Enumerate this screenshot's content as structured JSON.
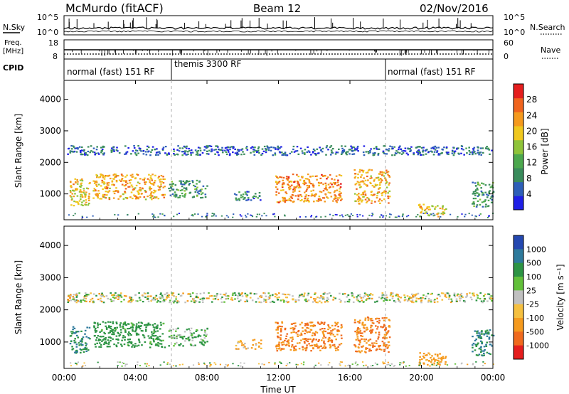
{
  "header": {
    "station": "McMurdo (fitACF)",
    "beam": "Beam 12",
    "date": "02/Nov/2016"
  },
  "aux_panel": {
    "left_labels": {
      "sky": "N.Sky",
      "freq_line1": "Freq.",
      "freq_line2": "[MHz]",
      "cpid": "CPID"
    },
    "right_labels": {
      "search": "N.Search",
      "nave": "Nave"
    },
    "sky_ticks": [
      "10^5",
      "10^0"
    ],
    "search_ticks": [
      "10^5",
      "10^0"
    ],
    "freq_ticks": [
      "18",
      "8"
    ],
    "nave_ticks": [
      "60",
      "0"
    ],
    "cpid_segments": [
      {
        "label": "normal (fast) 151 RF",
        "start_hour": 0,
        "end_hour": 6
      },
      {
        "label": "themis 3300 RF",
        "start_hour": 6,
        "end_hour": 18
      },
      {
        "label": "normal (fast) 151 RF",
        "start_hour": 18,
        "end_hour": 24
      }
    ]
  },
  "power_colorbar": {
    "label": "Power [dB]",
    "ticks": [
      "4",
      "8",
      "12",
      "16",
      "20",
      "24",
      "28"
    ],
    "colors": [
      "#1f1fe6",
      "#2e5fb8",
      "#3a8c5c",
      "#4ca84e",
      "#8fc43a",
      "#f0c81e",
      "#f59a1e",
      "#f0641e",
      "#e51e1e"
    ]
  },
  "velocity_colorbar": {
    "label": "Velocity [m s⁻¹]",
    "ticks": [
      "1000",
      "500",
      "100",
      "25",
      "-25",
      "-100",
      "-500",
      "-1000"
    ],
    "colors": [
      "#2448b0",
      "#2e7a9c",
      "#2d9444",
      "#62c03a",
      "#c0c0c0",
      "#f5c040",
      "#f59a1e",
      "#f06a1e",
      "#e51e1e"
    ]
  },
  "axes": {
    "ylabel": "Slant Range [km]",
    "xlabel": "Time UT",
    "y_ticks": [
      "1000",
      "2000",
      "3000",
      "4000"
    ],
    "x_ticks": [
      "00:00",
      "04:00",
      "08:00",
      "12:00",
      "16:00",
      "20:00",
      "00:00"
    ]
  },
  "chart_data": [
    {
      "type": "heatmap",
      "title": "",
      "xlabel": "",
      "ylabel": "Slant Range [km]",
      "xlim_hours": [
        0,
        24
      ],
      "ylim_km": [
        180,
        4600
      ],
      "value": "Power [dB]",
      "grid": false,
      "scatter_regions": [
        {
          "t_start": 0.1,
          "t_end": 24,
          "r_low": 2250,
          "r_high": 2550,
          "level": 6
        },
        {
          "t_start": 0.3,
          "t_end": 1.4,
          "r_low": 650,
          "r_high": 1500,
          "level": 20
        },
        {
          "t_start": 1.6,
          "t_end": 5.6,
          "r_low": 850,
          "r_high": 1650,
          "level": 22
        },
        {
          "t_start": 5.8,
          "t_end": 8.0,
          "r_low": 900,
          "r_high": 1450,
          "level": 10
        },
        {
          "t_start": 9.5,
          "t_end": 11.0,
          "r_low": 800,
          "r_high": 1100,
          "level": 8
        },
        {
          "t_start": 11.8,
          "t_end": 15.5,
          "r_low": 750,
          "r_high": 1650,
          "level": 24
        },
        {
          "t_start": 16.2,
          "t_end": 18.2,
          "r_low": 700,
          "r_high": 1800,
          "level": 22
        },
        {
          "t_start": 19.8,
          "t_end": 21.4,
          "r_low": 300,
          "r_high": 700,
          "level": 20
        },
        {
          "t_start": 22.8,
          "t_end": 24,
          "r_low": 600,
          "r_high": 1400,
          "level": 10
        }
      ]
    },
    {
      "type": "heatmap",
      "title": "",
      "xlabel": "Time UT",
      "ylabel": "Slant Range [km]",
      "xlim_hours": [
        0,
        24
      ],
      "ylim_km": [
        180,
        4600
      ],
      "value": "Velocity [m s⁻¹]",
      "grid": false,
      "scatter_regions": [
        {
          "t_start": 0.1,
          "t_end": 24,
          "r_low": 2250,
          "r_high": 2550,
          "velocity": 0
        },
        {
          "t_start": 0.3,
          "t_end": 1.4,
          "r_low": 650,
          "r_high": 1500,
          "velocity": 300
        },
        {
          "t_start": 1.6,
          "t_end": 5.6,
          "r_low": 850,
          "r_high": 1650,
          "velocity": 150
        },
        {
          "t_start": 5.8,
          "t_end": 8.0,
          "r_low": 900,
          "r_high": 1450,
          "velocity": 80
        },
        {
          "t_start": 9.5,
          "t_end": 11.0,
          "r_low": 800,
          "r_high": 1100,
          "velocity": -80
        },
        {
          "t_start": 11.8,
          "t_end": 15.5,
          "r_low": 750,
          "r_high": 1650,
          "velocity": -300
        },
        {
          "t_start": 16.2,
          "t_end": 18.2,
          "r_low": 700,
          "r_high": 1800,
          "velocity": -300
        },
        {
          "t_start": 19.8,
          "t_end": 21.4,
          "r_low": 300,
          "r_high": 700,
          "velocity": -150
        },
        {
          "t_start": 22.8,
          "t_end": 24,
          "r_low": 600,
          "r_high": 1400,
          "velocity": 300
        }
      ]
    }
  ]
}
